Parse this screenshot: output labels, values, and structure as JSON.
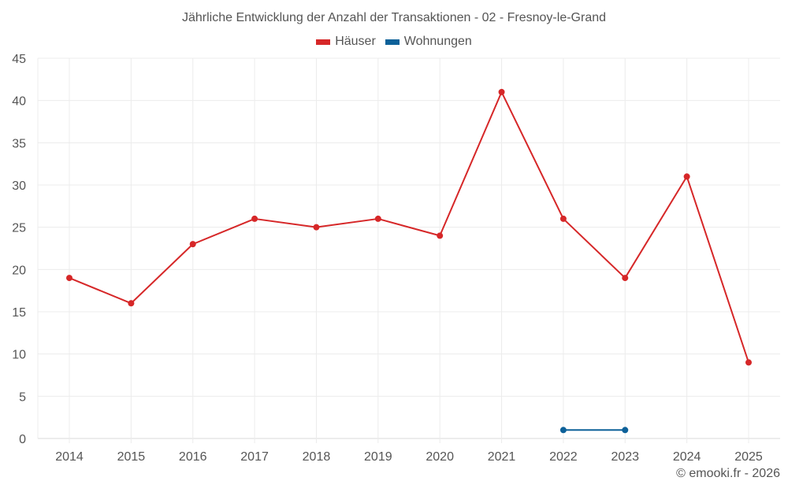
{
  "chart_data": {
    "type": "line",
    "title": "Jährliche Entwicklung der Anzahl der Transaktionen - 02 - Fresnoy-le-Grand",
    "xlabel": "",
    "ylabel": "",
    "categories": [
      "2014",
      "2015",
      "2016",
      "2017",
      "2018",
      "2019",
      "2020",
      "2021",
      "2022",
      "2023",
      "2024",
      "2025"
    ],
    "ylim": [
      0,
      45
    ],
    "yticks": [
      0,
      5,
      10,
      15,
      20,
      25,
      30,
      35,
      40,
      45
    ],
    "grid": true,
    "legend_position": "top",
    "series": [
      {
        "name": "Häuser",
        "color": "#d62728",
        "values": [
          19,
          16,
          23,
          26,
          25,
          26,
          24,
          41,
          26,
          19,
          31,
          9
        ]
      },
      {
        "name": "Wohnungen",
        "color": "#0d6199",
        "values": [
          null,
          null,
          null,
          null,
          null,
          null,
          null,
          null,
          1,
          1,
          null,
          null
        ]
      }
    ]
  },
  "legend": {
    "items": [
      {
        "label": "Häuser",
        "color": "#d62728"
      },
      {
        "label": "Wohnungen",
        "color": "#0d6199"
      }
    ]
  },
  "credit": "© emooki.fr - 2026"
}
